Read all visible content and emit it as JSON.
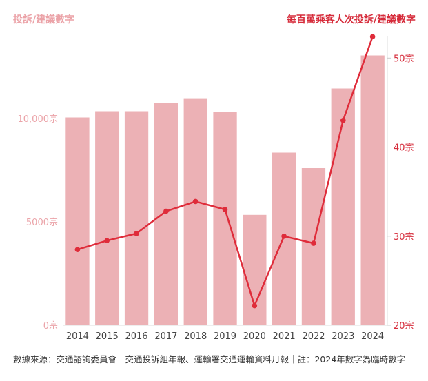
{
  "chart_data": {
    "type": "bar",
    "left_axis_title": "投訴/建議數字",
    "right_axis_title": "每百萬乘客人次投訴/建議數字",
    "categories": [
      "2014",
      "2015",
      "2016",
      "2017",
      "2018",
      "2019",
      "2020",
      "2021",
      "2022",
      "2023",
      "2024"
    ],
    "bar_series": {
      "values": [
        10050,
        10350,
        10350,
        10750,
        10980,
        10320,
        5340,
        8350,
        7600,
        11450,
        13050
      ],
      "color": "#ecb1b5",
      "axis": "left"
    },
    "line_series": {
      "values": [
        28.5,
        29.5,
        30.3,
        32.8,
        33.9,
        33.0,
        22.2,
        30.0,
        29.2,
        43.0,
        52.4
      ],
      "color": "#df2c3a",
      "axis": "right"
    },
    "left_axis": {
      "ylim": [
        0,
        14000
      ],
      "ticks": [
        {
          "value": 0,
          "label": "0宗"
        },
        {
          "value": 5000,
          "label": "5000宗"
        },
        {
          "value": 10000,
          "label": "10,000宗"
        }
      ],
      "color": "#eba3a8"
    },
    "right_axis": {
      "ylim": [
        20,
        52.5
      ],
      "ticks": [
        {
          "value": 20,
          "label": "20宗"
        },
        {
          "value": 30,
          "label": "30宗"
        },
        {
          "value": 40,
          "label": "40宗"
        },
        {
          "value": 50,
          "label": "50宗"
        }
      ],
      "color": "#d62c3b"
    },
    "grid": false
  },
  "note": "數據來源：交通諮詢委員會 - 交通投訴組年報、運輸署交通運輸資料月報｜註：2024年數字為臨時數字"
}
